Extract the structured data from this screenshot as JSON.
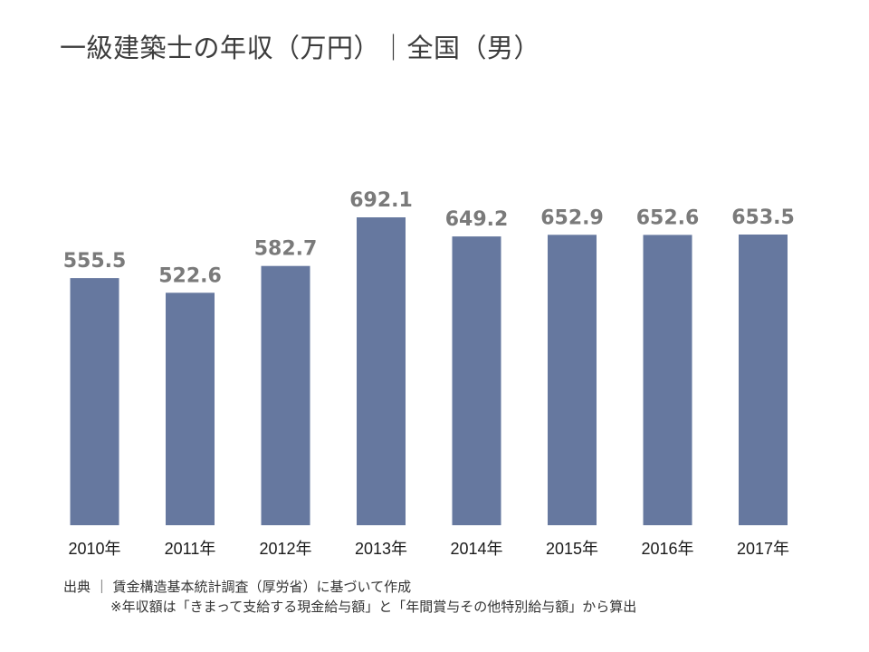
{
  "chart_data": {
    "type": "bar",
    "title": "一級建築士の年収（万円）｜全国（男）",
    "categories": [
      "2010年",
      "2011年",
      "2012年",
      "2013年",
      "2014年",
      "2015年",
      "2016年",
      "2017年"
    ],
    "values": [
      555.5,
      522.6,
      582.7,
      692.1,
      649.2,
      652.9,
      652.6,
      653.5
    ],
    "value_labels": [
      "555.5",
      "522.6",
      "582.7",
      "692.1",
      "649.2",
      "652.9",
      "652.6",
      "653.5"
    ],
    "ylim": [
      0,
      700
    ],
    "grid": false,
    "bar_color": "#66789f",
    "label_color": "#7a7a7a"
  },
  "footer": {
    "source": "出典 ｜ 賃金構造基本統計調査（厚労省）に基づいて作成",
    "note": "※年収額は「きまって支給する現金給与額」と「年間賞与その他特別給与額」から算出"
  }
}
